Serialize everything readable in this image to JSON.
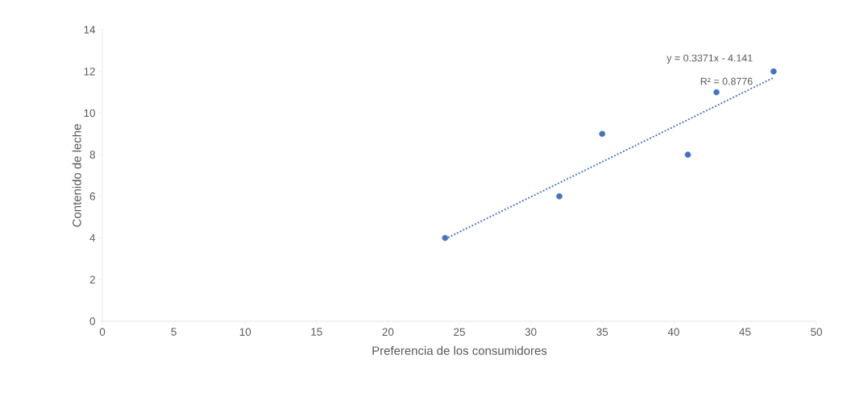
{
  "chart_data": {
    "type": "scatter",
    "xlabel": "Preferencia de los consumidores",
    "ylabel": "Contenido de leche",
    "series": [
      {
        "x": [
          24,
          32,
          35,
          41,
          43,
          47
        ],
        "values": [
          4,
          6,
          9,
          8,
          11,
          12
        ],
        "color": "#4472c4",
        "marker": "circle"
      },
      {
        "type": "line",
        "x": [
          24,
          47
        ],
        "values": [
          3.95,
          11.7
        ],
        "color": "#4472c4",
        "line_style": "dotted",
        "marker": "none"
      }
    ],
    "annotations": [
      "y = 0.3371x - 4.141",
      "R² = 0.8776"
    ],
    "xlim": [
      0,
      50
    ],
    "xticks": [
      0,
      5,
      10,
      15,
      20,
      25,
      30,
      35,
      40,
      45,
      50
    ],
    "ylim": [
      0,
      14
    ],
    "yticks": [
      0,
      2,
      4,
      6,
      8,
      10,
      12,
      14
    ],
    "grid": false
  }
}
